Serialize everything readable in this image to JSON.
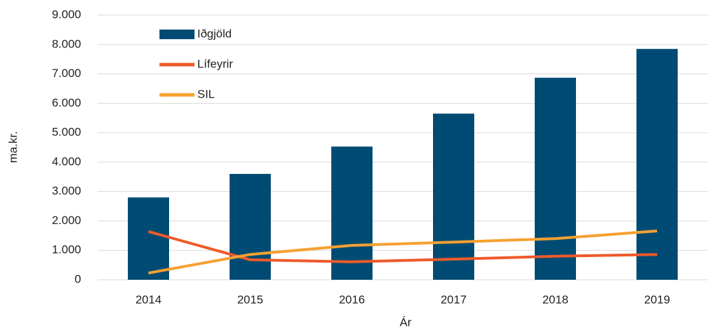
{
  "chart_data": {
    "type": "bar",
    "categories": [
      "2014",
      "2015",
      "2016",
      "2017",
      "2018",
      "2019"
    ],
    "series": [
      {
        "name": "Iðgjöld",
        "type": "bar",
        "color": "#004b73",
        "values": [
          2800,
          3600,
          4530,
          5650,
          6870,
          7850
        ]
      },
      {
        "name": "Lífeyrir",
        "type": "line",
        "color": "#ee5a2a",
        "values": [
          1640,
          680,
          610,
          700,
          800,
          860
        ]
      },
      {
        "name": "SIL",
        "type": "line",
        "color": "#f7a030",
        "values": [
          230,
          860,
          1170,
          1280,
          1400,
          1660
        ]
      }
    ],
    "ylabel": "ma.kr.",
    "xlabel": "Ár",
    "ylim": [
      0,
      9000
    ],
    "yticks": [
      0,
      {
        "value": 1000,
        "label": "1.000"
      },
      {
        "value": 2000,
        "label": "2.000"
      },
      {
        "value": 3000,
        "label": "3.000"
      },
      {
        "value": 4000,
        "label": "4.000"
      },
      {
        "value": 5000,
        "label": "5.000"
      },
      {
        "value": 6000,
        "label": "6.000"
      },
      {
        "value": 7000,
        "label": "7.000"
      },
      {
        "value": 8000,
        "label": "8.000"
      },
      {
        "value": 9000,
        "label": "9.000"
      }
    ],
    "grid": true,
    "legend": "top-left"
  }
}
